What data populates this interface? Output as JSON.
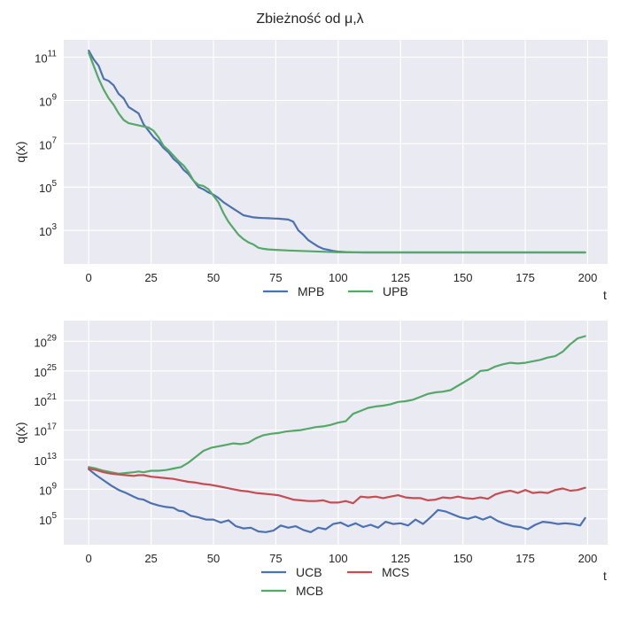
{
  "figure_title": "Zbieżność od μ,λ",
  "chart_data": [
    {
      "type": "line",
      "title": "",
      "xlabel": "t",
      "ylabel": "q(x)",
      "yscale": "log",
      "xlim": [
        -10,
        208
      ],
      "ylim_log10": [
        1.45,
        11.8
      ],
      "x_ticks": [
        0,
        25,
        50,
        75,
        100,
        125,
        150,
        175,
        200
      ],
      "y_ticks": [
        {
          "exp": 3,
          "base": "10",
          "sup": "3"
        },
        {
          "exp": 5,
          "base": "10",
          "sup": "5"
        },
        {
          "exp": 7,
          "base": "10",
          "sup": "7"
        },
        {
          "exp": 9,
          "base": "10",
          "sup": "9"
        },
        {
          "exp": 11,
          "base": "10",
          "sup": "11"
        }
      ],
      "grid": true,
      "legend_position": "below",
      "series": [
        {
          "name": "MPB",
          "color": "#4c72b0",
          "x": [
            0,
            2,
            4,
            6,
            8,
            10,
            12,
            14,
            16,
            18,
            20,
            22,
            24,
            26,
            28,
            30,
            32,
            34,
            36,
            38,
            40,
            42,
            44,
            46,
            48,
            50,
            52,
            54,
            56,
            58,
            60,
            62,
            64,
            66,
            68,
            70,
            72,
            74,
            76,
            78,
            80,
            82,
            84,
            86,
            88,
            90,
            92,
            94,
            96,
            98,
            100,
            103,
            106,
            110,
            120,
            130,
            140,
            150,
            160,
            170,
            180,
            190,
            199
          ],
          "y_log10": [
            11.3,
            10.9,
            10.6,
            10.0,
            9.9,
            9.7,
            9.3,
            9.1,
            8.7,
            8.55,
            8.4,
            7.9,
            7.6,
            7.3,
            7.1,
            6.8,
            6.6,
            6.3,
            6.1,
            5.8,
            5.6,
            5.3,
            5.0,
            4.9,
            4.75,
            4.65,
            4.5,
            4.3,
            4.15,
            4.0,
            3.85,
            3.7,
            3.65,
            3.6,
            3.58,
            3.57,
            3.56,
            3.55,
            3.54,
            3.52,
            3.5,
            3.4,
            3.0,
            2.8,
            2.55,
            2.4,
            2.25,
            2.15,
            2.1,
            2.05,
            2.02,
            2.0,
            1.99,
            1.98,
            1.98,
            1.98,
            1.98,
            1.98,
            1.98,
            1.98,
            1.98,
            1.98,
            1.98
          ]
        },
        {
          "name": "UPB",
          "color": "#55a868",
          "x": [
            0,
            2,
            4,
            6,
            8,
            10,
            12,
            14,
            16,
            18,
            20,
            22,
            24,
            26,
            28,
            30,
            32,
            34,
            36,
            38,
            40,
            42,
            44,
            46,
            48,
            50,
            52,
            54,
            56,
            58,
            60,
            62,
            64,
            66,
            68,
            70,
            72,
            75,
            80,
            85,
            90,
            95,
            100,
            110,
            120,
            140,
            160,
            180,
            199
          ],
          "y_log10": [
            11.2,
            10.6,
            10.0,
            9.5,
            9.1,
            8.8,
            8.4,
            8.1,
            7.95,
            7.9,
            7.85,
            7.8,
            7.75,
            7.6,
            7.3,
            6.9,
            6.7,
            6.45,
            6.2,
            6.0,
            5.7,
            5.3,
            5.1,
            5.05,
            4.9,
            4.6,
            4.3,
            3.8,
            3.4,
            3.1,
            2.8,
            2.6,
            2.45,
            2.35,
            2.2,
            2.15,
            2.12,
            2.1,
            2.07,
            2.05,
            2.03,
            2.01,
            1.99,
            1.98,
            1.98,
            1.98,
            1.98,
            1.98,
            1.98
          ]
        }
      ]
    },
    {
      "type": "line",
      "title": "",
      "xlabel": "t",
      "ylabel": "q(x)",
      "yscale": "log",
      "xlim": [
        -10,
        208
      ],
      "ylim_log10": [
        1.5,
        31.8
      ],
      "x_ticks": [
        0,
        25,
        50,
        75,
        100,
        125,
        150,
        175,
        200
      ],
      "y_ticks": [
        {
          "exp": 5,
          "base": "10",
          "sup": "5"
        },
        {
          "exp": 9,
          "base": "10",
          "sup": "9"
        },
        {
          "exp": 13,
          "base": "10",
          "sup": "13"
        },
        {
          "exp": 17,
          "base": "10",
          "sup": "17"
        },
        {
          "exp": 21,
          "base": "10",
          "sup": "21"
        },
        {
          "exp": 25,
          "base": "10",
          "sup": "25"
        },
        {
          "exp": 29,
          "base": "10",
          "sup": "29"
        }
      ],
      "grid": true,
      "legend_position": "below",
      "series": [
        {
          "name": "UCB",
          "color": "#4c72b0",
          "x": [
            0,
            3,
            6,
            9,
            12,
            15,
            18,
            20,
            22,
            25,
            28,
            31,
            34,
            36,
            38,
            41,
            44,
            47,
            50,
            53,
            56,
            59,
            62,
            65,
            68,
            71,
            74,
            77,
            80,
            83,
            86,
            89,
            92,
            95,
            98,
            101,
            104,
            107,
            110,
            113,
            116,
            119,
            122,
            125,
            128,
            131,
            134,
            137,
            140,
            143,
            146,
            149,
            152,
            155,
            158,
            161,
            164,
            167,
            170,
            173,
            176,
            179,
            182,
            185,
            188,
            191,
            194,
            197,
            199
          ],
          "y_log10": [
            11.7,
            10.9,
            10.2,
            9.5,
            8.9,
            8.5,
            8.0,
            7.7,
            7.6,
            7.1,
            6.8,
            6.6,
            6.5,
            6.1,
            6.0,
            5.4,
            5.2,
            4.9,
            4.9,
            4.5,
            4.8,
            4.0,
            3.7,
            3.8,
            3.3,
            3.2,
            3.4,
            4.1,
            3.8,
            4.0,
            3.5,
            3.2,
            3.8,
            3.6,
            4.3,
            4.5,
            4.0,
            4.4,
            3.9,
            4.2,
            3.8,
            4.6,
            4.3,
            4.4,
            4.1,
            4.9,
            4.3,
            5.2,
            6.2,
            6.0,
            5.6,
            5.2,
            5.0,
            5.3,
            4.9,
            5.3,
            4.7,
            4.3,
            4.0,
            3.9,
            3.6,
            4.2,
            4.6,
            4.5,
            4.3,
            4.4,
            4.3,
            4.1,
            5.1
          ]
        },
        {
          "name": "MCB",
          "color": "#55a868",
          "x": [
            0,
            3,
            6,
            9,
            12,
            15,
            18,
            20,
            22,
            25,
            28,
            31,
            34,
            37,
            40,
            43,
            46,
            49,
            52,
            55,
            58,
            61,
            64,
            67,
            70,
            73,
            76,
            79,
            82,
            85,
            88,
            91,
            94,
            97,
            100,
            103,
            106,
            109,
            112,
            115,
            118,
            121,
            124,
            127,
            130,
            133,
            136,
            139,
            142,
            145,
            148,
            151,
            154,
            157,
            160,
            163,
            166,
            169,
            172,
            175,
            178,
            181,
            184,
            187,
            190,
            193,
            196,
            199
          ],
          "y_log10": [
            12.0,
            11.8,
            11.5,
            11.3,
            11.1,
            11.2,
            11.3,
            11.4,
            11.3,
            11.5,
            11.5,
            11.6,
            11.8,
            12.0,
            12.6,
            13.4,
            14.2,
            14.6,
            14.8,
            15.0,
            15.2,
            15.1,
            15.3,
            15.9,
            16.3,
            16.5,
            16.6,
            16.8,
            16.9,
            17.0,
            17.2,
            17.4,
            17.5,
            17.7,
            18.0,
            18.2,
            19.2,
            19.6,
            20.0,
            20.2,
            20.3,
            20.5,
            20.8,
            20.9,
            21.1,
            21.5,
            21.9,
            22.1,
            22.2,
            22.4,
            23.0,
            23.6,
            24.2,
            25.0,
            25.1,
            25.6,
            25.9,
            26.1,
            26.0,
            26.1,
            26.3,
            26.5,
            26.8,
            27.0,
            27.6,
            28.6,
            29.4,
            29.7
          ]
        },
        {
          "name": "MCS",
          "color": "#c44e52",
          "x": [
            0,
            3,
            6,
            9,
            12,
            15,
            18,
            20,
            22,
            25,
            28,
            31,
            34,
            37,
            40,
            43,
            46,
            49,
            52,
            55,
            58,
            61,
            64,
            67,
            70,
            73,
            76,
            79,
            82,
            85,
            88,
            91,
            94,
            97,
            100,
            103,
            106,
            109,
            112,
            115,
            118,
            121,
            124,
            127,
            130,
            133,
            136,
            139,
            142,
            145,
            148,
            151,
            154,
            157,
            160,
            163,
            166,
            169,
            172,
            175,
            178,
            181,
            184,
            187,
            190,
            193,
            196,
            199
          ],
          "y_log10": [
            11.8,
            11.6,
            11.3,
            11.1,
            11.0,
            10.9,
            10.8,
            10.9,
            10.9,
            10.7,
            10.6,
            10.5,
            10.4,
            10.2,
            10.0,
            9.9,
            9.7,
            9.6,
            9.4,
            9.2,
            9.0,
            8.8,
            8.7,
            8.5,
            8.4,
            8.3,
            8.2,
            7.9,
            7.6,
            7.5,
            7.4,
            7.4,
            7.5,
            7.2,
            7.2,
            7.4,
            7.1,
            8.0,
            7.9,
            8.0,
            7.8,
            8.0,
            8.2,
            7.9,
            7.8,
            7.8,
            7.5,
            7.6,
            7.9,
            7.8,
            8.0,
            7.8,
            7.7,
            7.9,
            7.7,
            8.3,
            8.6,
            8.8,
            8.5,
            8.9,
            8.5,
            8.6,
            8.5,
            8.9,
            9.1,
            8.8,
            8.9,
            9.2
          ]
        }
      ]
    }
  ]
}
